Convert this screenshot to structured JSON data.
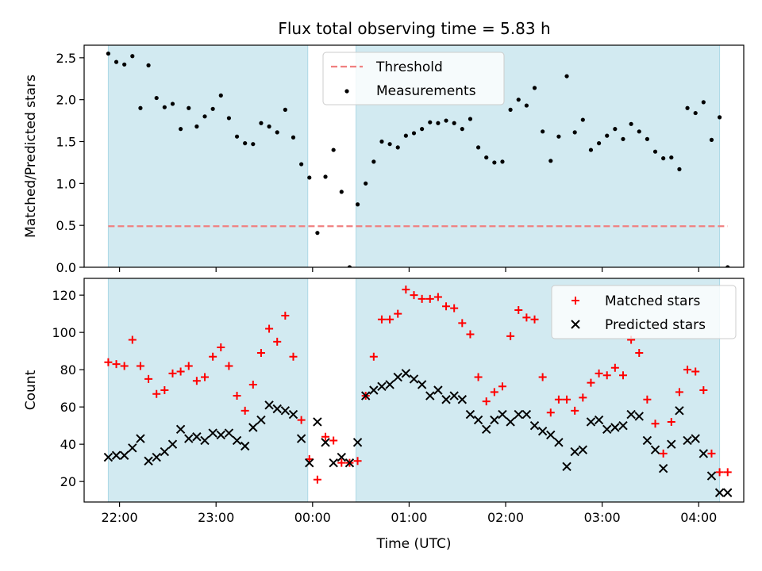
{
  "title": "Flux total observing time = 5.83 h",
  "colors": {
    "shade": "#add8e6",
    "threshold": "#f08080",
    "measurement": "#000000",
    "matched": "#ff0000",
    "predicted": "#000000"
  },
  "chart_data": [
    {
      "type": "scatter",
      "title": "Flux total observing time = 5.83 h",
      "ylabel": "Matched/Predicted stars",
      "xlabel": "",
      "ylim": [
        0,
        2.65
      ],
      "yticks": [
        "0.0",
        "0.5",
        "1.0",
        "1.5",
        "2.0",
        "2.5"
      ],
      "legend_position": "upper center",
      "threshold": {
        "name": "Threshold",
        "value": 0.49,
        "x_from": "21:53",
        "x_to": "04:18"
      },
      "shaded_intervals": [
        [
          "21:53",
          "23:57"
        ],
        [
          "00:27",
          "04:13"
        ]
      ],
      "series": [
        {
          "name": "Measurements",
          "x": [
            "21:53",
            "21:58",
            "22:03",
            "22:08",
            "22:13",
            "22:18",
            "22:23",
            "22:28",
            "22:33",
            "22:38",
            "22:43",
            "22:48",
            "22:53",
            "22:58",
            "23:03",
            "23:08",
            "23:13",
            "23:18",
            "23:23",
            "23:28",
            "23:33",
            "23:38",
            "23:43",
            "23:48",
            "23:53",
            "23:58",
            "00:03",
            "00:08",
            "00:13",
            "00:18",
            "00:23",
            "00:28",
            "00:33",
            "00:38",
            "00:43",
            "00:48",
            "00:53",
            "00:58",
            "01:03",
            "01:08",
            "01:13",
            "01:18",
            "01:23",
            "01:28",
            "01:33",
            "01:38",
            "01:43",
            "01:48",
            "01:53",
            "01:58",
            "02:03",
            "02:08",
            "02:13",
            "02:18",
            "02:23",
            "02:28",
            "02:33",
            "02:38",
            "02:43",
            "02:48",
            "02:53",
            "02:58",
            "03:03",
            "03:08",
            "03:13",
            "03:18",
            "03:23",
            "03:28",
            "03:33",
            "03:38",
            "03:43",
            "03:48",
            "03:53",
            "03:58",
            "04:03",
            "04:08",
            "04:13",
            "04:18"
          ],
          "y": [
            2.55,
            2.45,
            2.42,
            2.52,
            1.9,
            2.41,
            2.02,
            1.91,
            1.95,
            1.65,
            1.9,
            1.68,
            1.8,
            1.89,
            2.05,
            1.78,
            1.56,
            1.48,
            1.47,
            1.72,
            1.68,
            1.61,
            1.88,
            1.55,
            1.23,
            1.07,
            0.41,
            1.08,
            1.4,
            0.9,
            0.0,
            0.75,
            1.0,
            1.26,
            1.5,
            1.47,
            1.43,
            1.57,
            1.6,
            1.65,
            1.73,
            1.72,
            1.75,
            1.72,
            1.65,
            1.77,
            1.43,
            1.31,
            1.25,
            1.26,
            1.88,
            2.0,
            1.93,
            2.14,
            1.62,
            1.27,
            1.56,
            2.28,
            1.61,
            1.76,
            1.4,
            1.48,
            1.57,
            1.65,
            1.53,
            1.71,
            1.62,
            1.53,
            1.38,
            1.3,
            1.31,
            1.17,
            1.9,
            1.84,
            1.97,
            1.52,
            1.79,
            0.0
          ]
        }
      ]
    },
    {
      "type": "scatter",
      "title": "",
      "ylabel": "Count",
      "xlabel": "Time (UTC)",
      "ylim": [
        9,
        129
      ],
      "yticks": [
        "20",
        "40",
        "60",
        "80",
        "100",
        "120"
      ],
      "xticks": [
        "22:00",
        "23:00",
        "00:00",
        "01:00",
        "02:00",
        "03:00",
        "04:00"
      ],
      "legend_position": "upper right",
      "shaded_intervals": [
        [
          "21:53",
          "23:57"
        ],
        [
          "00:27",
          "04:13"
        ]
      ],
      "series": [
        {
          "name": "Matched stars",
          "marker": "plus",
          "x": [
            "21:53",
            "21:58",
            "22:03",
            "22:08",
            "22:13",
            "22:18",
            "22:23",
            "22:28",
            "22:33",
            "22:38",
            "22:43",
            "22:48",
            "22:53",
            "22:58",
            "23:03",
            "23:08",
            "23:13",
            "23:18",
            "23:23",
            "23:28",
            "23:33",
            "23:38",
            "23:43",
            "23:48",
            "23:53",
            "23:58",
            "00:03",
            "00:08",
            "00:13",
            "00:18",
            "00:23",
            "00:28",
            "00:33",
            "00:38",
            "00:43",
            "00:48",
            "00:53",
            "00:58",
            "01:03",
            "01:08",
            "01:13",
            "01:18",
            "01:23",
            "01:28",
            "01:33",
            "01:38",
            "01:43",
            "01:48",
            "01:53",
            "01:58",
            "02:03",
            "02:08",
            "02:13",
            "02:18",
            "02:23",
            "02:28",
            "02:33",
            "02:38",
            "02:43",
            "02:48",
            "02:53",
            "02:58",
            "03:03",
            "03:08",
            "03:13",
            "03:18",
            "03:23",
            "03:28",
            "03:33",
            "03:38",
            "03:43",
            "03:48",
            "03:53",
            "03:58",
            "04:03",
            "04:08",
            "04:13",
            "04:18"
          ],
          "y": [
            84,
            83,
            82,
            96,
            82,
            75,
            67,
            69,
            78,
            79,
            82,
            74,
            76,
            87,
            92,
            82,
            66,
            58,
            72,
            89,
            102,
            95,
            109,
            87,
            53,
            32,
            21,
            44,
            42,
            30,
            30,
            31,
            66,
            87,
            107,
            107,
            110,
            123,
            120,
            118,
            118,
            119,
            114,
            113,
            105,
            99,
            76,
            63,
            68,
            71,
            98,
            112,
            108,
            107,
            76,
            57,
            64,
            64,
            58,
            65,
            73,
            78,
            77,
            81,
            77,
            96,
            89,
            64,
            51,
            35,
            52,
            68,
            80,
            79,
            69,
            35,
            25,
            25
          ]
        },
        {
          "name": "Predicted stars",
          "marker": "x",
          "x": [
            "21:53",
            "21:58",
            "22:03",
            "22:08",
            "22:13",
            "22:18",
            "22:23",
            "22:28",
            "22:33",
            "22:38",
            "22:43",
            "22:48",
            "22:53",
            "22:58",
            "23:03",
            "23:08",
            "23:13",
            "23:18",
            "23:23",
            "23:28",
            "23:33",
            "23:38",
            "23:43",
            "23:48",
            "23:53",
            "23:58",
            "00:03",
            "00:08",
            "00:13",
            "00:18",
            "00:23",
            "00:28",
            "00:33",
            "00:38",
            "00:43",
            "00:48",
            "00:53",
            "00:58",
            "01:03",
            "01:08",
            "01:13",
            "01:18",
            "01:23",
            "01:28",
            "01:33",
            "01:38",
            "01:43",
            "01:48",
            "01:53",
            "01:58",
            "02:03",
            "02:08",
            "02:13",
            "02:18",
            "02:23",
            "02:28",
            "02:33",
            "02:38",
            "02:43",
            "02:48",
            "02:53",
            "02:58",
            "03:03",
            "03:08",
            "03:13",
            "03:18",
            "03:23",
            "03:28",
            "03:33",
            "03:38",
            "03:43",
            "03:48",
            "03:53",
            "03:58",
            "04:03",
            "04:08",
            "04:13",
            "04:18"
          ],
          "y": [
            33,
            34,
            34,
            38,
            43,
            31,
            33,
            36,
            40,
            48,
            43,
            44,
            42,
            46,
            45,
            46,
            42,
            39,
            49,
            53,
            61,
            59,
            58,
            56,
            43,
            30,
            52,
            41,
            30,
            33,
            30,
            41,
            66,
            69,
            71,
            72,
            76,
            78,
            75,
            72,
            66,
            69,
            64,
            66,
            64,
            56,
            53,
            48,
            53,
            56,
            52,
            56,
            56,
            50,
            47,
            45,
            41,
            28,
            36,
            37,
            52,
            53,
            48,
            49,
            50,
            56,
            55,
            42,
            37,
            27,
            40,
            58,
            42,
            43,
            35,
            23,
            14,
            14
          ]
        }
      ]
    }
  ]
}
